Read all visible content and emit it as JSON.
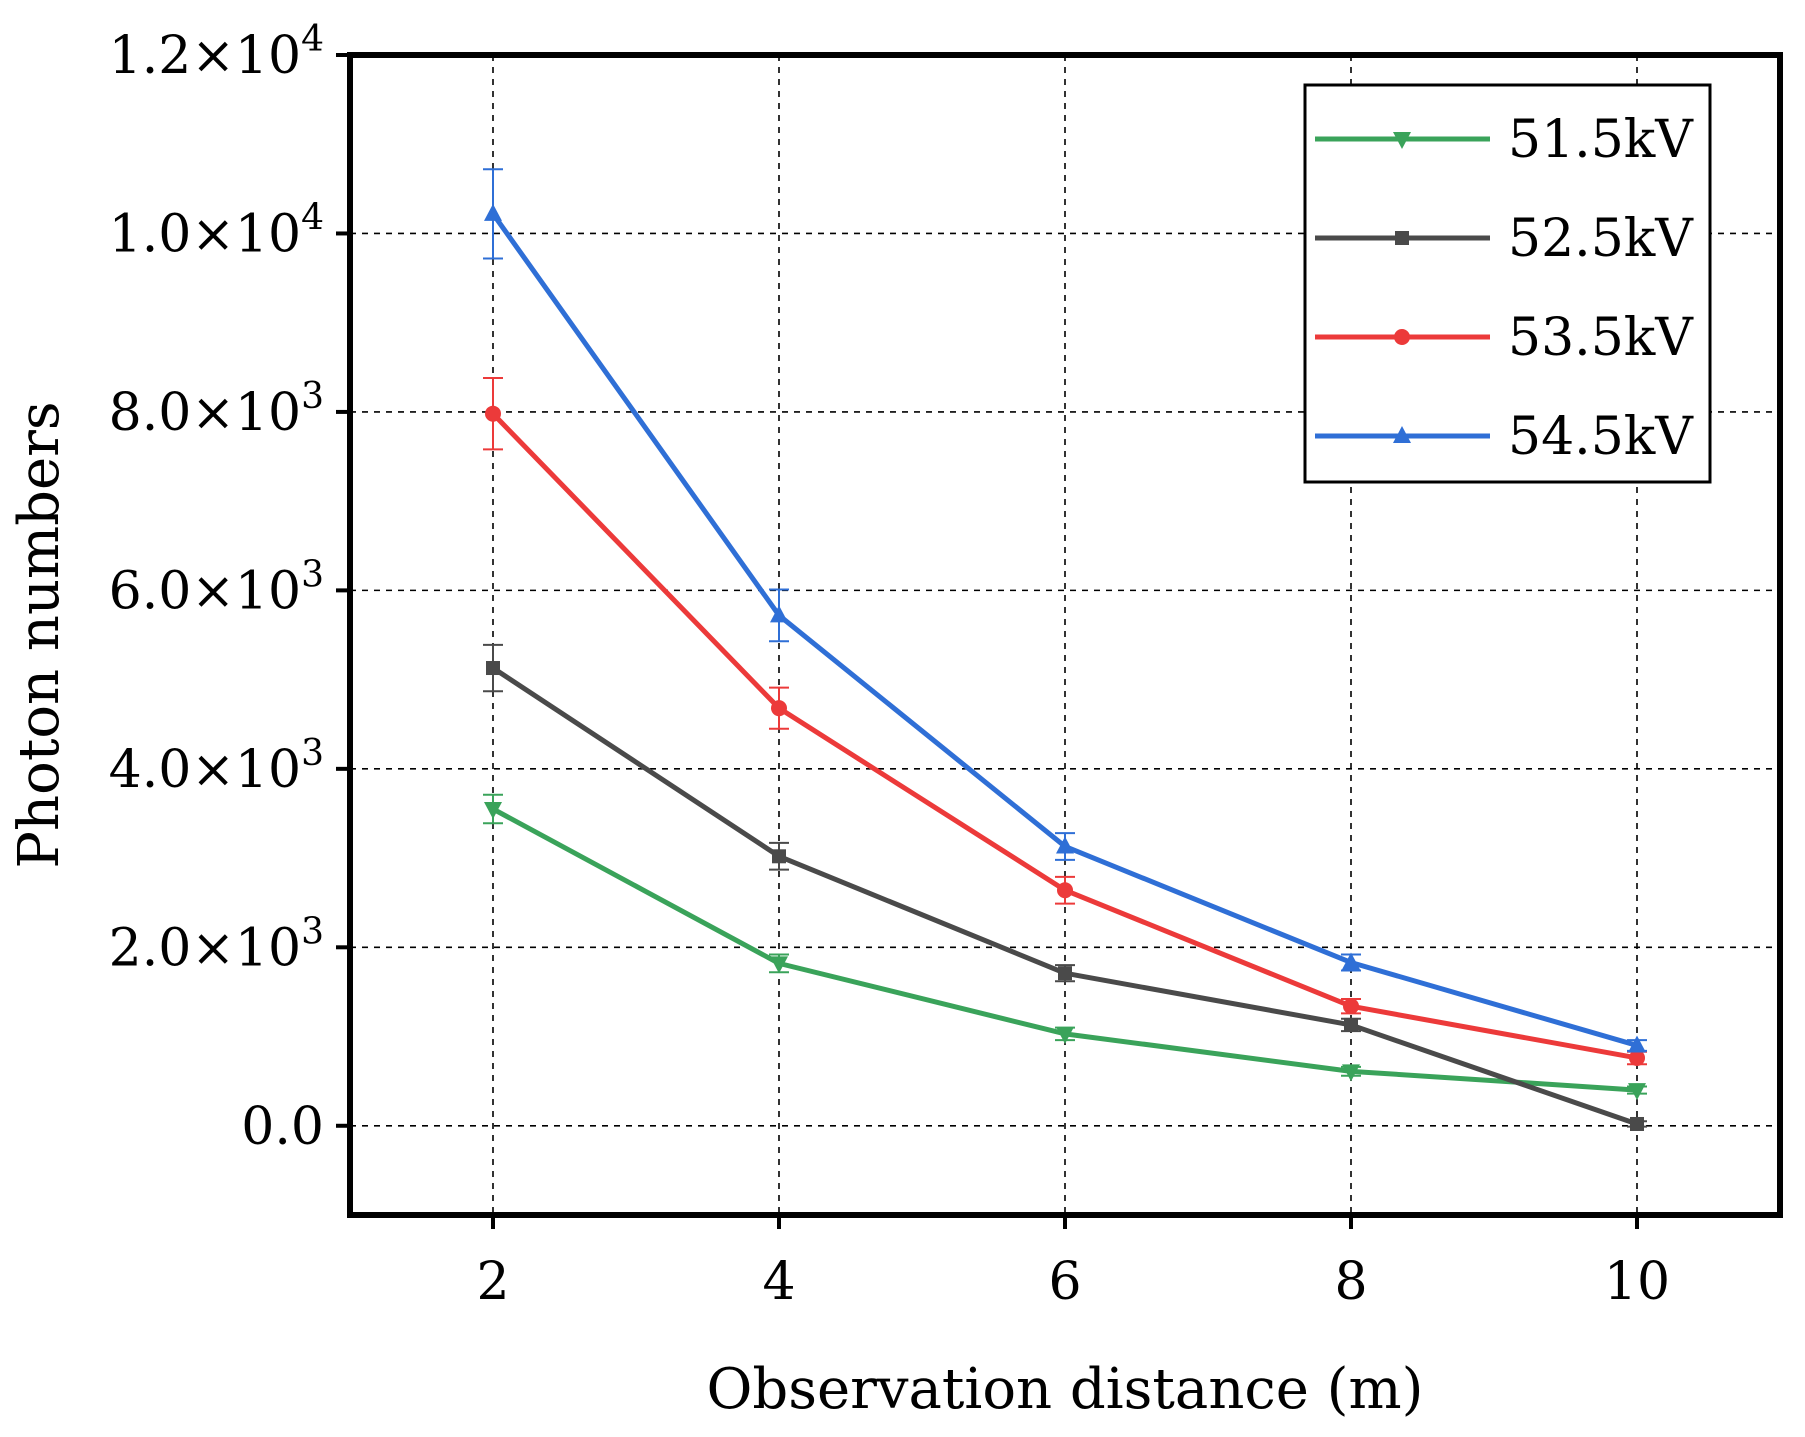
{
  "chart_data": {
    "type": "line",
    "title": "",
    "xlabel": "Observation distance (m)",
    "ylabel": "Photon numbers",
    "x": [
      2,
      4,
      6,
      8,
      10
    ],
    "xlim": [
      1,
      11
    ],
    "ylim": [
      -1000,
      12000
    ],
    "x_ticks": [
      2,
      4,
      6,
      8,
      10
    ],
    "y_ticks": [
      {
        "value": 0,
        "mantissa": "0.0",
        "exponent": ""
      },
      {
        "value": 2000,
        "mantissa": "2.0×10",
        "exponent": "3"
      },
      {
        "value": 4000,
        "mantissa": "4.0×10",
        "exponent": "3"
      },
      {
        "value": 6000,
        "mantissa": "6.0×10",
        "exponent": "3"
      },
      {
        "value": 8000,
        "mantissa": "8.0×10",
        "exponent": "3"
      },
      {
        "value": 10000,
        "mantissa": "1.0×10",
        "exponent": "4"
      },
      {
        "value": 12000,
        "mantissa": "1.2×10",
        "exponent": "4"
      }
    ],
    "grid": true,
    "legend_position": "top-right",
    "series": [
      {
        "name": "51.5kV",
        "color": "#3aa35a",
        "marker": "triangle-down",
        "values": [
          3550,
          1820,
          1030,
          610,
          400
        ],
        "errors": [
          160,
          100,
          70,
          50,
          40
        ]
      },
      {
        "name": "52.5kV",
        "color": "#4a4a4a",
        "marker": "square",
        "values": [
          5130,
          3020,
          1710,
          1130,
          20
        ],
        "errors": [
          260,
          150,
          90,
          70,
          30
        ]
      },
      {
        "name": "53.5kV",
        "color": "#ec3a3a",
        "marker": "circle",
        "values": [
          7980,
          4680,
          2640,
          1340,
          760
        ],
        "errors": [
          400,
          230,
          150,
          80,
          70
        ]
      },
      {
        "name": "54.5kV",
        "color": "#2f6fd6",
        "marker": "triangle-up",
        "values": [
          10220,
          5720,
          3130,
          1830,
          900
        ],
        "errors": [
          500,
          290,
          150,
          90,
          60
        ]
      }
    ]
  }
}
